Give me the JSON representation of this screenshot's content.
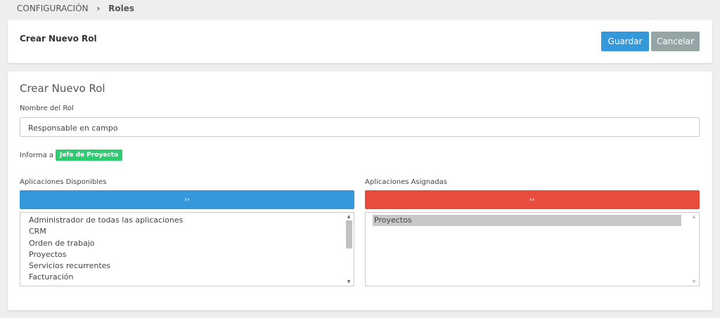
{
  "breadcrumb": {
    "parent": "CONFIGURACIÓN",
    "current": "Roles"
  },
  "header": {
    "title": "Crear Nuevo Rol",
    "save": "Guardar",
    "cancel": "Cancelar"
  },
  "form": {
    "title": "Crear Nuevo Rol",
    "name_label": "Nombre del Rol",
    "name_value": "Responsable en campo",
    "reports_to_label": "Informa a",
    "reports_to": "Jefe de Proyecto",
    "available": {
      "label": "Aplicaciones Disponibles",
      "button": "››",
      "items": [
        "Administrador de todas las aplicaciones",
        "CRM",
        "Orden de trabajo",
        "Proyectos",
        "Servicios recurrentes",
        "Facturación"
      ]
    },
    "assigned": {
      "label": "Aplicaciones Asignadas",
      "button": "‹‹",
      "items": [
        "Proyectos"
      ]
    }
  }
}
